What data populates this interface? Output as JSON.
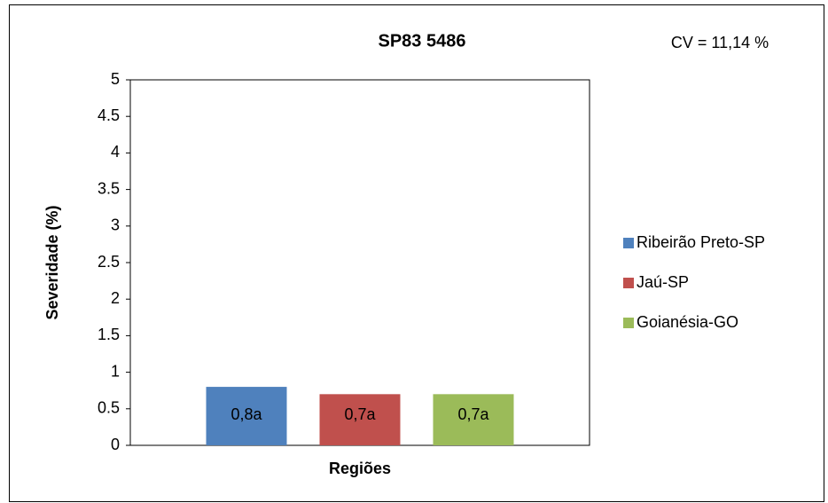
{
  "chart_data": {
    "type": "bar",
    "title": "SP83 5486",
    "annotation": "CV = 11,14 %",
    "y_label": "Severidade (%)",
    "x_label": "Regiões",
    "categories": [
      null
    ],
    "series": [
      {
        "name": "Ribeirão Preto-SP",
        "color": "#4f81bd",
        "values": [
          0.8
        ],
        "value_labels": [
          "0,8a"
        ]
      },
      {
        "name": "Jaú-SP",
        "color": "#c0504d",
        "values": [
          0.7
        ],
        "value_labels": [
          "0,7a"
        ]
      },
      {
        "name": "Goianésia-GO",
        "color": "#9bbb59",
        "values": [
          0.7
        ],
        "value_labels": [
          "0,7a"
        ]
      }
    ],
    "ylim": [
      0,
      5
    ],
    "yticks": [
      0,
      0.5,
      1,
      1.5,
      2,
      2.5,
      3,
      3.5,
      4,
      4.5,
      5
    ],
    "grid": false,
    "legend": "right"
  }
}
